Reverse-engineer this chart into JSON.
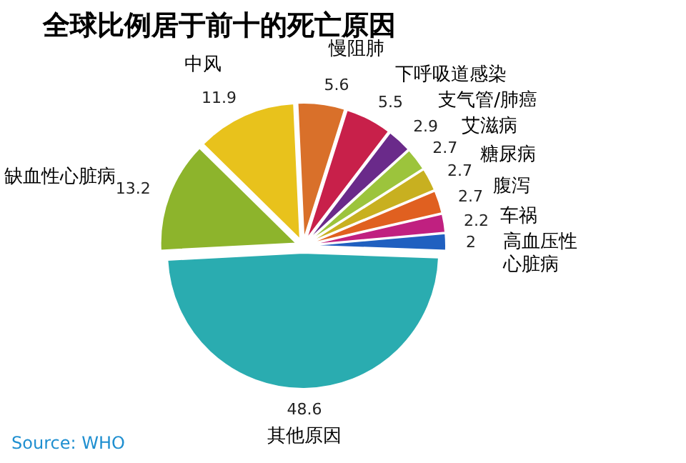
{
  "chart_data": {
    "type": "pie",
    "title": "全球比例居于前十的死亡原因",
    "categories": [
      "缺血性心脏病",
      "中风",
      "慢阻肺",
      "下呼吸道感染",
      "支气管/肺癌",
      "艾滋病",
      "糖尿病",
      "腹泻",
      "车祸",
      "高血压性心脏病",
      "其他原因"
    ],
    "values": [
      13.2,
      11.9,
      5.6,
      5.5,
      2.9,
      2.7,
      2.7,
      2.7,
      2.2,
      2,
      48.6
    ],
    "colors": [
      "#8db42c",
      "#e8c21c",
      "#d9702a",
      "#c8204a",
      "#6a2a8a",
      "#9cc43c",
      "#c8b020",
      "#e06020",
      "#c02080",
      "#2060c0",
      "#2aacb0"
    ],
    "data_labels": true,
    "annotations": [
      "Source: WHO"
    ]
  }
}
